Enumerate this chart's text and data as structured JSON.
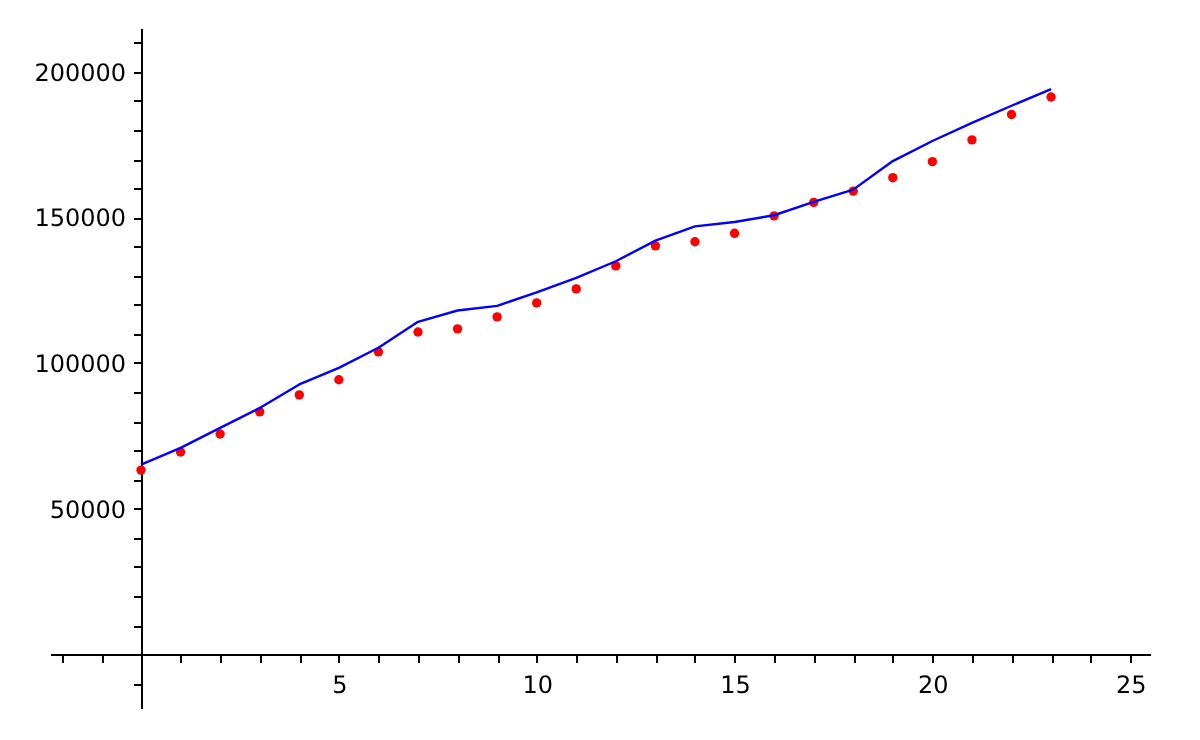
{
  "chart_data": {
    "type": "scatter",
    "x": [
      0,
      1,
      2,
      3,
      4,
      5,
      6,
      7,
      8,
      9,
      10,
      11,
      12,
      13,
      14,
      15,
      16,
      17,
      18,
      19,
      20,
      21,
      22,
      23
    ],
    "series": [
      {
        "color": "#ff0000",
        "marker": "circle",
        "values": [
          63200,
          69400,
          75600,
          83200,
          89000,
          94200,
          103800,
          110600,
          111700,
          115800,
          120600,
          125400,
          133300,
          140200,
          141600,
          144500,
          150500,
          155100,
          159000,
          163600,
          169100,
          176600,
          185300,
          191300
        ]
      },
      {
        "type": "line",
        "color": "#0000ff",
        "marker": "none",
        "line_style": "solid",
        "values": [
          65100,
          70800,
          77700,
          84500,
          92600,
          98300,
          105200,
          114100,
          118000,
          119600,
          124200,
          129200,
          134900,
          142000,
          146900,
          148400,
          150700,
          155300,
          159500,
          169300,
          176200,
          182400,
          188300,
          194000
        ]
      }
    ],
    "xlim": [
      -2.3,
      25.5
    ],
    "ylim": [
      -18500,
      215000
    ],
    "xticks": [
      {
        "value": -2,
        "label": null
      },
      {
        "value": -1,
        "label": null
      },
      {
        "value": 1,
        "label": null
      },
      {
        "value": 2,
        "label": null
      },
      {
        "value": 3,
        "label": null
      },
      {
        "value": 4,
        "label": null
      },
      5,
      {
        "value": 6,
        "label": null
      },
      {
        "value": 7,
        "label": null
      },
      {
        "value": 8,
        "label": null
      },
      {
        "value": 9,
        "label": null
      },
      10,
      {
        "value": 11,
        "label": null
      },
      {
        "value": 12,
        "label": null
      },
      {
        "value": 13,
        "label": null
      },
      {
        "value": 14,
        "label": null
      },
      15,
      {
        "value": 16,
        "label": null
      },
      {
        "value": 17,
        "label": null
      },
      {
        "value": 18,
        "label": null
      },
      {
        "value": 19,
        "label": null
      },
      20,
      {
        "value": 21,
        "label": null
      },
      {
        "value": 22,
        "label": null
      },
      {
        "value": 23,
        "label": null
      },
      {
        "value": 24,
        "label": null
      },
      25
    ],
    "yticks": [
      {
        "value": -10000,
        "label": null
      },
      {
        "value": 10000,
        "label": null
      },
      {
        "value": 20000,
        "label": null
      },
      {
        "value": 30000,
        "label": null
      },
      {
        "value": 40000,
        "label": null
      },
      50000,
      {
        "value": 60000,
        "label": null
      },
      {
        "value": 70000,
        "label": null
      },
      {
        "value": 80000,
        "label": null
      },
      {
        "value": 90000,
        "label": null
      },
      100000,
      {
        "value": 110000,
        "label": null
      },
      {
        "value": 120000,
        "label": null
      },
      {
        "value": 130000,
        "label": null
      },
      {
        "value": 140000,
        "label": null
      },
      150000,
      {
        "value": 160000,
        "label": null
      },
      {
        "value": 170000,
        "label": null
      },
      {
        "value": 180000,
        "label": null
      },
      {
        "value": 190000,
        "label": null
      },
      200000,
      {
        "value": 210000,
        "label": null
      }
    ],
    "grid": false
  }
}
